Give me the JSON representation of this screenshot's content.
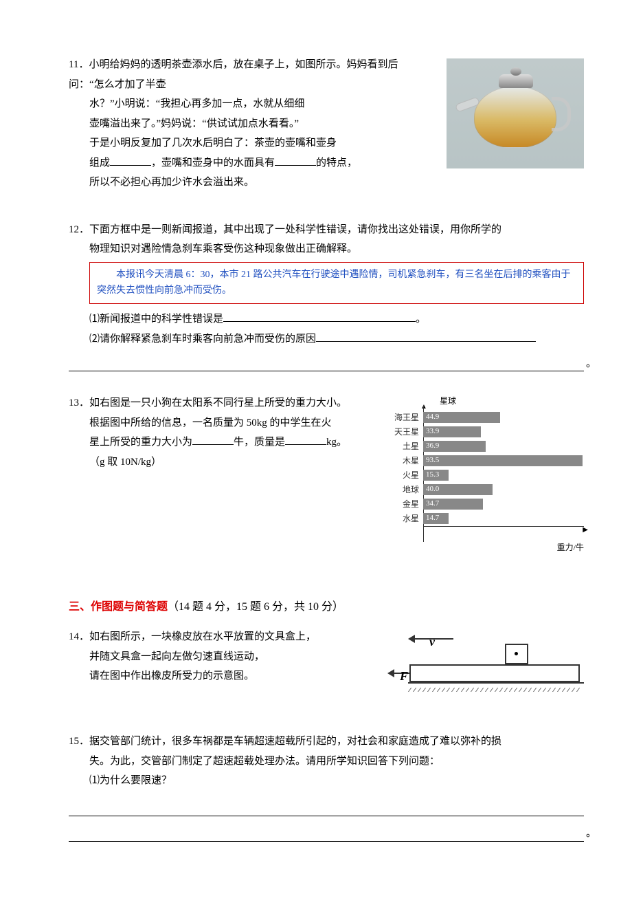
{
  "q11": {
    "num": "11．",
    "line1": "小明给妈妈的透明茶壶添水后，放在桌子上，如图所示。妈妈看到后问：“怎么才加了半壶",
    "line2": "水？”小明说：“我担心再多加一点，水就从细细",
    "line3": "壶嘴溢出来了。”妈妈说：“供试试加点水看看。”",
    "line4": "于是小明反复加了几次水后明白了：茶壶的壶嘴和壶身",
    "line5a": "组成",
    "line5b": "，壶嘴和壶身中的水面具有",
    "line5c": "的特点，",
    "line6": "所以不必担心再加少许水会溢出来。"
  },
  "q12": {
    "num": "12．",
    "intro1": "下面方框中是一则新闻报道，其中出现了一处科学性错误，请你找出这处错误，用你所学的",
    "intro2": "物理知识对遇险情急刹车乘客受伤这种现象做出正确解释。",
    "news": "　　本报讯今天清晨 6：30，本市 21 路公共汽车在行驶途中遇险情，司机紧急刹车，有三名坐在后排的乘客由于突然失去惯性向前急冲而受伤。",
    "sub1": "⑴新闻报道中的科学性错误是",
    "sub1end": "。",
    "sub2": "⑵请你解释紧急刹车时乘客向前急冲而受伤的原因"
  },
  "q13": {
    "num": "13．",
    "line1": "如右图是一只小狗在太阳系不同行星上所受的重力大小。",
    "line2": "根据图中所给的信息，一名质量为 50kg 的中学生在火",
    "line3a": "星上所受的重力大小为",
    "line3b": "牛，质量是",
    "line3c": "kg。",
    "line4": "（g 取 10N/kg）",
    "chart": {
      "type": "bar_horizontal",
      "ylabel": "星球",
      "xlabel": "重力/牛",
      "bar_color": "#888888",
      "value_text_color": "#ffffff",
      "label_fontsize": 12,
      "planets": [
        {
          "name": "海王星",
          "value": 44.9,
          "width_pct": 48
        },
        {
          "name": "天王星",
          "value": 33.9,
          "width_pct": 36
        },
        {
          "name": "土星",
          "value": 36.9,
          "width_pct": 39
        },
        {
          "name": "木星",
          "value": 93.5,
          "width_pct": 99
        },
        {
          "name": "火星",
          "value": 15.3,
          "width_pct": 16
        },
        {
          "name": "地球",
          "value": 40.0,
          "display": "40.0",
          "width_pct": 43
        },
        {
          "name": "金星",
          "value": 34.7,
          "width_pct": 37
        },
        {
          "name": "水星",
          "value": 14.7,
          "width_pct": 16
        }
      ]
    }
  },
  "section3": {
    "title_red": "三、作图题与简答题",
    "title_paren": "（14 题 4 分，15 题 6 分，共 10 分）"
  },
  "q14": {
    "num": "14．",
    "line1": "如右图所示，一块橡皮放在水平放置的文具盒上，",
    "line2": "并随文具盒一起向左做匀速直线运动，",
    "line3": "请在图中作出橡皮所受力的示意图。",
    "diagram": {
      "v_label": "v",
      "f_label": "F",
      "colors": {
        "line": "#333333",
        "bg": "#ffffff"
      }
    }
  },
  "q15": {
    "num": "15．",
    "line1": "据交管部门统计，很多车祸都是车辆超速超载所引起的，对社会和家庭造成了难以弥补的损",
    "line2": "失。为此，交管部门制定了超速超载处理办法。请用所学知识回答下列问题：",
    "sub1": "⑴为什么要限速？"
  }
}
